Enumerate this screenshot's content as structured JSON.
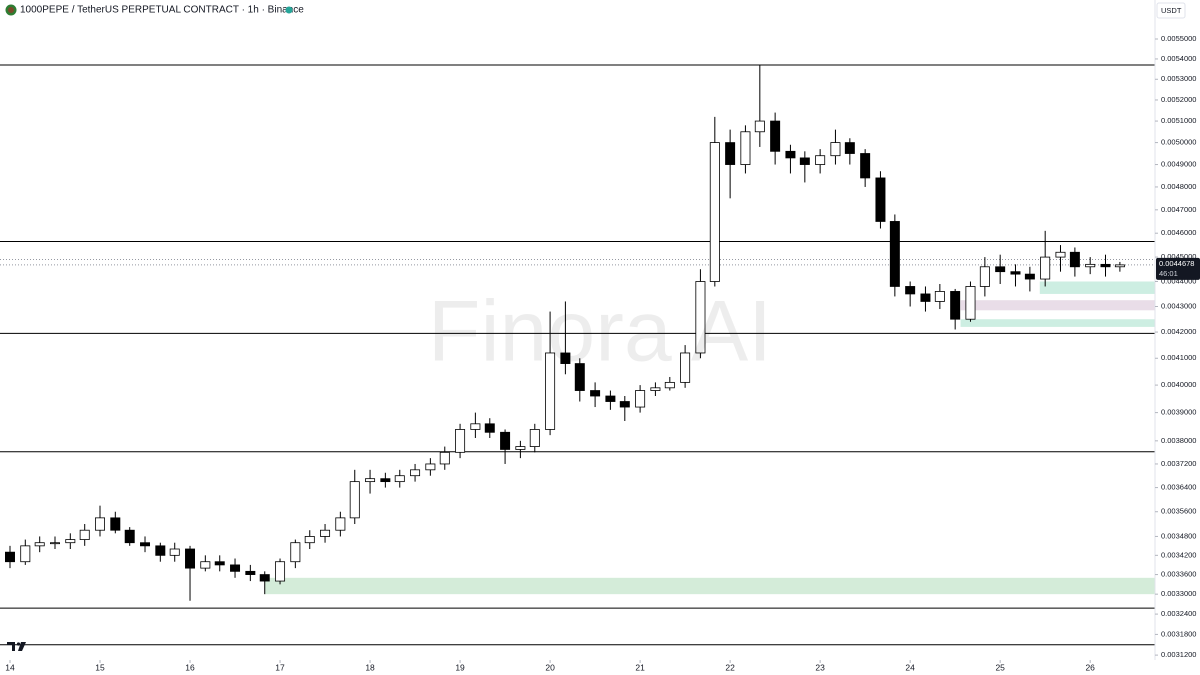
{
  "chart_data": {
    "type": "candlestick",
    "title": "1000PEPE / TetherUS PERPETUAL CONTRACT · 1h · Binance",
    "currency_label": "USDT",
    "watermark": "Finora AI",
    "countdown": "46:01",
    "log_scale": true,
    "up_color": "#ffffff",
    "down_color": "#000000",
    "ylim": [
      0.003106,
      0.005701
    ],
    "yticks": [
      {
        "value": 0.0055,
        "label": "0.0055000"
      },
      {
        "value": 0.0054,
        "label": "0.0054000"
      },
      {
        "value": 0.0053,
        "label": "0.0053000"
      },
      {
        "value": 0.0052,
        "label": "0.0052000"
      },
      {
        "value": 0.0051,
        "label": "0.0051000"
      },
      {
        "value": 0.005,
        "label": "0.0050000"
      },
      {
        "value": 0.0049,
        "label": "0.0049000"
      },
      {
        "value": 0.0048,
        "label": "0.0048000"
      },
      {
        "value": 0.0047,
        "label": "0.0047000"
      },
      {
        "value": 0.0046,
        "label": "0.0046000"
      },
      {
        "value": 0.0045,
        "label": "0.0045000"
      },
      {
        "value": 0.0044,
        "label": "0.0044000"
      },
      {
        "value": 0.0043,
        "label": "0.0043000"
      },
      {
        "value": 0.0042,
        "label": "0.0042000"
      },
      {
        "value": 0.0041,
        "label": "0.0041000"
      },
      {
        "value": 0.004,
        "label": "0.0040000"
      },
      {
        "value": 0.0039,
        "label": "0.0039000"
      },
      {
        "value": 0.0038,
        "label": "0.0038000"
      },
      {
        "value": 0.00372,
        "label": "0.0037200"
      },
      {
        "value": 0.00364,
        "label": "0.0036400"
      },
      {
        "value": 0.00356,
        "label": "0.0035600"
      },
      {
        "value": 0.00348,
        "label": "0.0034800"
      },
      {
        "value": 0.00342,
        "label": "0.0034200"
      },
      {
        "value": 0.00336,
        "label": "0.0033600"
      },
      {
        "value": 0.0033,
        "label": "0.0033000"
      },
      {
        "value": 0.00324,
        "label": "0.0032400"
      },
      {
        "value": 0.00318,
        "label": "0.0031800"
      },
      {
        "value": 0.00312,
        "label": "0.0031200"
      }
    ],
    "xlim": [
      13.889,
      26.72
    ],
    "xticks": [
      14,
      15,
      16,
      17,
      18,
      19,
      20,
      21,
      22,
      23,
      24,
      25,
      26
    ],
    "levels": [
      0.00537,
      0.004565,
      0.004195,
      0.003762,
      0.003258,
      0.00315
    ],
    "level_color": "#000000",
    "dotted_levels": [
      0.00449,
      0.004468
    ],
    "zones": [
      {
        "x_from": 16.83,
        "low": 0.0033,
        "high": 0.00335,
        "color": "#d4ecd9"
      },
      {
        "x_from": 25.44,
        "low": 0.00435,
        "high": 0.0044,
        "color": "#cdeee2"
      },
      {
        "x_from": 24.56,
        "low": 0.004285,
        "high": 0.004325,
        "color": "#e9dde8"
      },
      {
        "x_from": 24.56,
        "low": 0.00422,
        "high": 0.00425,
        "color": "#cdeee2"
      }
    ],
    "ohlc": {
      "x": [
        14,
        14.17,
        14.33,
        14.5,
        14.67,
        14.83,
        15,
        15.17,
        15.33,
        15.5,
        15.67,
        15.83,
        16,
        16.17,
        16.33,
        16.5,
        16.67,
        16.83,
        17,
        17.17,
        17.33,
        17.5,
        17.67,
        17.83,
        18,
        18.17,
        18.33,
        18.5,
        18.67,
        18.83,
        19,
        19.17,
        19.33,
        19.5,
        19.67,
        19.83,
        20,
        20.17,
        20.33,
        20.5,
        20.67,
        20.83,
        21,
        21.17,
        21.33,
        21.5,
        21.67,
        21.83,
        22,
        22.17,
        22.33,
        22.5,
        22.67,
        22.83,
        23,
        23.17,
        23.33,
        23.5,
        23.67,
        23.83,
        24,
        24.17,
        24.33,
        24.5,
        24.67,
        24.83,
        25,
        25.17,
        25.33,
        25.5,
        25.67,
        25.83,
        26,
        26.17,
        26.33
      ],
      "open": [
        0.00343,
        0.0034,
        0.00345,
        0.00346,
        0.00346,
        0.00347,
        0.0035,
        0.00354,
        0.0035,
        0.00346,
        0.00345,
        0.00342,
        0.00344,
        0.00338,
        0.0034,
        0.00339,
        0.00337,
        0.00336,
        0.00334,
        0.0034,
        0.00346,
        0.00348,
        0.0035,
        0.00354,
        0.00366,
        0.00367,
        0.00366,
        0.00368,
        0.0037,
        0.00372,
        0.00376,
        0.00384,
        0.00386,
        0.00383,
        0.00377,
        0.00378,
        0.00384,
        0.00412,
        0.00408,
        0.00398,
        0.00396,
        0.00394,
        0.00392,
        0.00398,
        0.00399,
        0.00401,
        0.00412,
        0.0044,
        0.005,
        0.0049,
        0.00505,
        0.0051,
        0.00496,
        0.00493,
        0.0049,
        0.00494,
        0.005,
        0.00495,
        0.00484,
        0.00465,
        0.00438,
        0.00435,
        0.00432,
        0.00436,
        0.00425,
        0.00438,
        0.00446,
        0.00444,
        0.00443,
        0.00441,
        0.0045,
        0.00452,
        0.00446,
        0.00447,
        0.00446
      ],
      "high": [
        0.00345,
        0.00347,
        0.00348,
        0.00348,
        0.00349,
        0.00352,
        0.00358,
        0.00356,
        0.00351,
        0.00348,
        0.00346,
        0.00346,
        0.00345,
        0.00342,
        0.00342,
        0.00341,
        0.00339,
        0.00337,
        0.00341,
        0.00347,
        0.0035,
        0.00352,
        0.00356,
        0.0037,
        0.0037,
        0.00369,
        0.0037,
        0.00372,
        0.00374,
        0.00378,
        0.00386,
        0.0039,
        0.00388,
        0.00384,
        0.0038,
        0.00386,
        0.00428,
        0.00432,
        0.0041,
        0.00401,
        0.00398,
        0.00396,
        0.004,
        0.00401,
        0.00403,
        0.00415,
        0.00445,
        0.00512,
        0.00506,
        0.00508,
        0.00537,
        0.00514,
        0.00499,
        0.00496,
        0.00497,
        0.00506,
        0.00502,
        0.00497,
        0.00487,
        0.00468,
        0.0044,
        0.00438,
        0.00439,
        0.00437,
        0.0044,
        0.0045,
        0.00451,
        0.00447,
        0.00446,
        0.00461,
        0.00455,
        0.00454,
        0.0045,
        0.00451,
        0.00448
      ],
      "low": [
        0.00338,
        0.00339,
        0.00343,
        0.00344,
        0.00344,
        0.00345,
        0.00348,
        0.00349,
        0.00345,
        0.00343,
        0.0034,
        0.0034,
        0.00328,
        0.00337,
        0.00337,
        0.00335,
        0.00334,
        0.0033,
        0.00333,
        0.00338,
        0.00344,
        0.00346,
        0.00348,
        0.00352,
        0.00362,
        0.00364,
        0.00364,
        0.00366,
        0.00368,
        0.0037,
        0.00374,
        0.00381,
        0.00381,
        0.00372,
        0.00374,
        0.00376,
        0.00382,
        0.00404,
        0.00394,
        0.00392,
        0.00391,
        0.00387,
        0.0039,
        0.00396,
        0.00398,
        0.00399,
        0.0041,
        0.00438,
        0.00475,
        0.00486,
        0.00498,
        0.0049,
        0.00486,
        0.00482,
        0.00486,
        0.0049,
        0.0049,
        0.0048,
        0.00462,
        0.00434,
        0.0043,
        0.00428,
        0.00429,
        0.00421,
        0.00424,
        0.00434,
        0.00439,
        0.00438,
        0.00436,
        0.00438,
        0.00444,
        0.00442,
        0.00443,
        0.00442,
        0.00444
      ],
      "close": [
        0.0034,
        0.00345,
        0.00346,
        0.00346,
        0.00347,
        0.0035,
        0.00354,
        0.0035,
        0.00346,
        0.00345,
        0.00342,
        0.00344,
        0.00338,
        0.0034,
        0.00339,
        0.00337,
        0.00336,
        0.00334,
        0.0034,
        0.00346,
        0.00348,
        0.0035,
        0.00354,
        0.00366,
        0.00367,
        0.00366,
        0.00368,
        0.0037,
        0.00372,
        0.00376,
        0.00384,
        0.00386,
        0.00383,
        0.00377,
        0.00378,
        0.00384,
        0.00412,
        0.00408,
        0.00398,
        0.00396,
        0.00394,
        0.00392,
        0.00398,
        0.00399,
        0.00401,
        0.00412,
        0.0044,
        0.005,
        0.0049,
        0.00505,
        0.0051,
        0.00496,
        0.00493,
        0.0049,
        0.00494,
        0.005,
        0.00495,
        0.00484,
        0.00465,
        0.00438,
        0.00435,
        0.00432,
        0.00436,
        0.00425,
        0.00438,
        0.00446,
        0.00444,
        0.00443,
        0.00441,
        0.0045,
        0.00452,
        0.00446,
        0.00447,
        0.00446,
        0.0044678
      ]
    }
  }
}
